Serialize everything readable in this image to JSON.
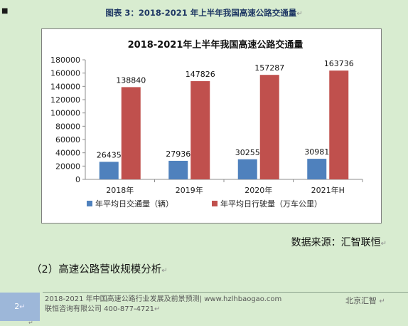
{
  "caption": "图表 3：2018-2021 年上半年我国高速公路交通量",
  "chart_data": {
    "type": "bar",
    "title": "2018-2021年上半年我国高速公路交通量",
    "categories": [
      "2018年",
      "2019年",
      "2020年",
      "2021年H"
    ],
    "series": [
      {
        "name": "年平均日交通量（辆）",
        "color": "#4f81bd",
        "values": [
          26435,
          27936,
          30255,
          30981
        ]
      },
      {
        "name": "年平均日行驶量（万车公里）",
        "color": "#c0504d",
        "values": [
          138840,
          147826,
          157287,
          163736
        ]
      }
    ],
    "ylim": [
      0,
      180000
    ],
    "yticks": [
      "0",
      "20000",
      "40000",
      "60000",
      "80000",
      "100000",
      "120000",
      "140000",
      "160000",
      "180000"
    ],
    "legend_position": "bottom",
    "grid": false
  },
  "source": "数据来源：汇智联恒",
  "section_heading": "（2）高速公路营收规模分析",
  "footer": {
    "page_number": "2",
    "line1": "2018-2021 年中国高速公路行业发展及前景预测| www.hzlhbaogao.com",
    "line2": "联恒咨询有限公司  400-877-4721",
    "right": "北京汇智"
  }
}
